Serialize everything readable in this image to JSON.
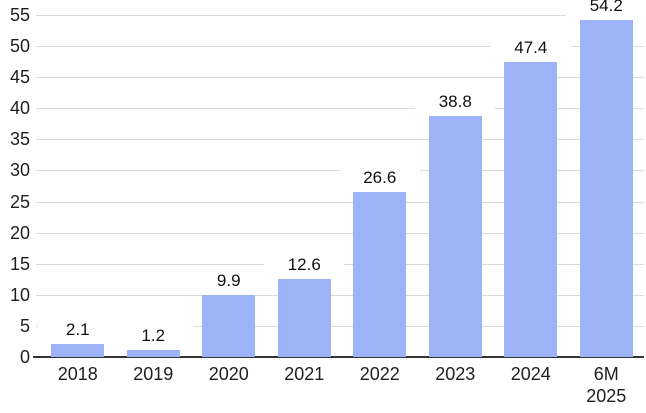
{
  "chart_data": {
    "type": "bar",
    "title": "",
    "xlabel": "",
    "ylabel": "",
    "categories": [
      "2018",
      "2019",
      "2020",
      "2021",
      "2022",
      "2023",
      "2024",
      "6M 2025"
    ],
    "values": [
      2.1,
      1.2,
      9.9,
      12.6,
      26.6,
      38.8,
      47.4,
      54.2
    ],
    "data_labels": [
      "2.1",
      "1.2",
      "9.9",
      "12.6",
      "26.6",
      "38.8",
      "47.4",
      "54.2"
    ],
    "ylim": [
      0,
      55
    ],
    "yticks": [
      0,
      5,
      10,
      15,
      20,
      25,
      30,
      35,
      40,
      45,
      50,
      55
    ],
    "ytick_labels": [
      "0",
      "5",
      "10",
      "15",
      "20",
      "25",
      "30",
      "35",
      "40",
      "45",
      "50",
      "55"
    ],
    "grid": true,
    "legend": "none",
    "colors": {
      "bar": "#9db3f8",
      "gridline": "#d9d9d9",
      "axis_line": "#333333",
      "tick_text": "#1f1f1f",
      "data_label_text": "#111111",
      "background": "#ffffff"
    }
  }
}
